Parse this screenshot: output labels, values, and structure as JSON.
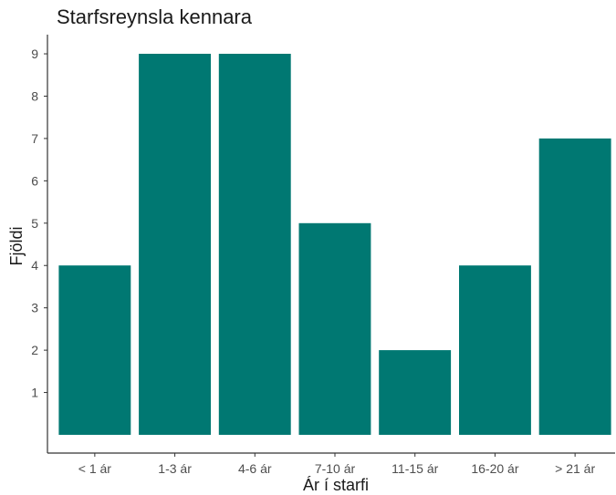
{
  "chart_data": {
    "type": "bar",
    "title": "Starfsreynsla kennara",
    "xlabel": "Ár í starfi",
    "ylabel": "Fjöldi",
    "categories": [
      "< 1 ár",
      "1-3 ár",
      "4-6 ár",
      "7-10 ár",
      "11-15 ár",
      "16-20 ár",
      "> 21 ár"
    ],
    "values": [
      4,
      9,
      9,
      5,
      2,
      4,
      7
    ],
    "yticks": [
      "1",
      "2",
      "3",
      "4",
      "5",
      "6",
      "7",
      "8",
      "9"
    ],
    "ylim": [
      0,
      9.4
    ],
    "grid": false,
    "legend": "none",
    "bar_color": "#007872",
    "axis_color": "#333333"
  }
}
